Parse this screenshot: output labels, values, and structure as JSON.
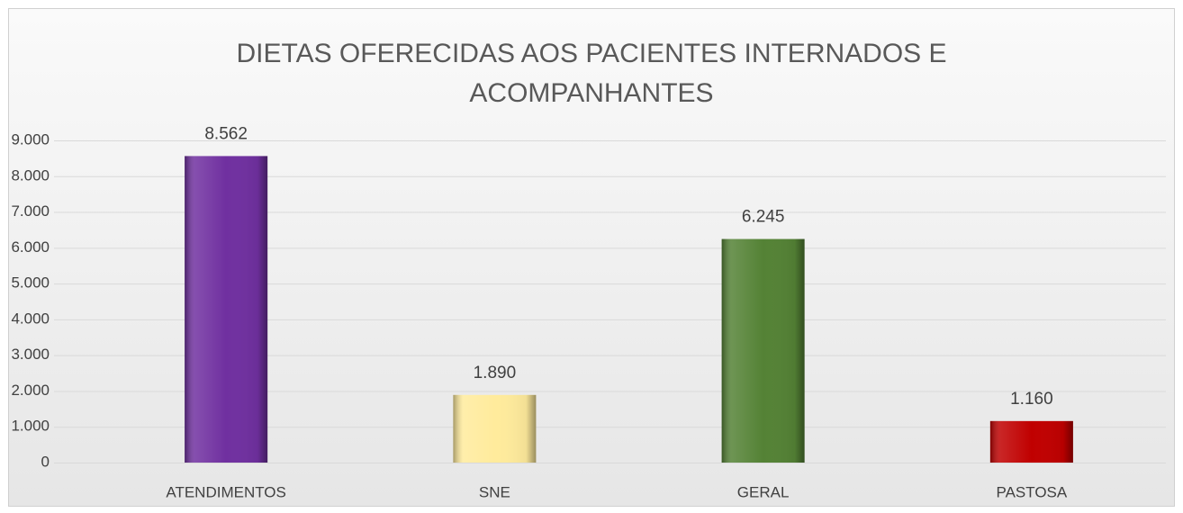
{
  "chart_data": {
    "type": "bar",
    "title": "DIETAS OFERECIDAS AOS PACIENTES INTERNADOS E ACOMPANHANTES",
    "categories": [
      "ATENDIMENTOS",
      "SNE",
      "GERAL",
      "PASTOSA"
    ],
    "values": [
      8562,
      1890,
      6245,
      1160
    ],
    "value_labels": [
      "8.562",
      "1.890",
      "6.245",
      "1.160"
    ],
    "colors": [
      "#7030a0",
      "#ffeb9c",
      "#548235",
      "#c00000"
    ],
    "ylim": [
      0,
      9000
    ],
    "yticks": [
      0,
      {
        "value": 1000,
        "label": "1.000"
      },
      {
        "value": 2000,
        "label": "2.000"
      },
      {
        "value": 3000,
        "label": "3.000"
      },
      {
        "value": 4000,
        "label": "4.000"
      },
      {
        "value": 5000,
        "label": "5.000"
      },
      {
        "value": 6000,
        "label": "6.000"
      },
      {
        "value": 7000,
        "label": "7.000"
      },
      {
        "value": 8000,
        "label": "8.000"
      },
      {
        "value": 9000,
        "label": "9.000"
      }
    ],
    "grid": true
  }
}
